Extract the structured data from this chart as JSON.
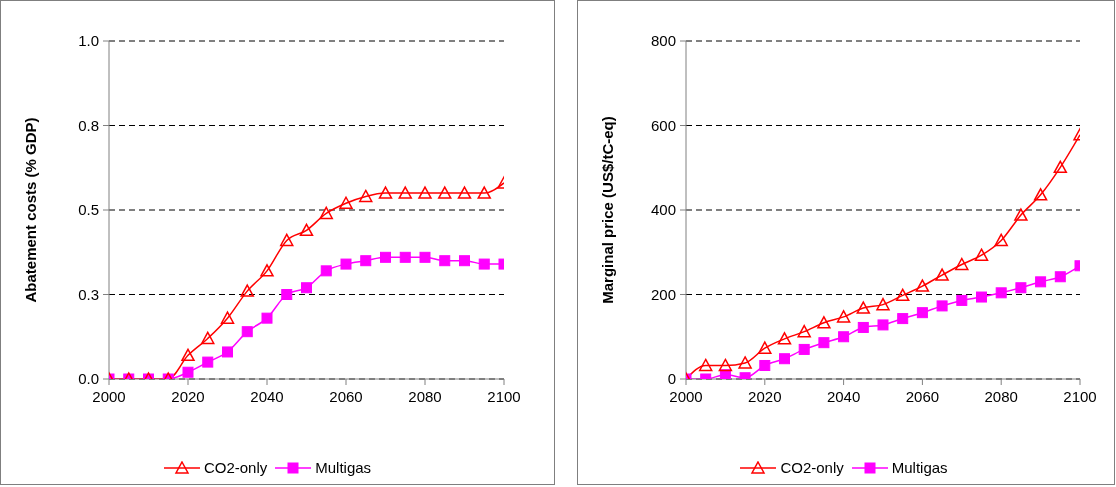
{
  "chart_data": [
    {
      "type": "line",
      "ylabel": "Abatement costs (% GDP)",
      "x": [
        2000,
        2005,
        2010,
        2015,
        2020,
        2025,
        2030,
        2035,
        2040,
        2045,
        2050,
        2055,
        2060,
        2065,
        2070,
        2075,
        2080,
        2085,
        2090,
        2095,
        2100
      ],
      "series": [
        {
          "name": "CO2-only",
          "color": "#ff0000",
          "marker": "triangle",
          "values": [
            0,
            0,
            0,
            0,
            0.07,
            0.12,
            0.18,
            0.26,
            0.32,
            0.41,
            0.44,
            0.49,
            0.52,
            0.54,
            0.55,
            0.55,
            0.55,
            0.55,
            0.55,
            0.55,
            0.58
          ]
        },
        {
          "name": "Multigas",
          "color": "#ff00ff",
          "marker": "square",
          "values": [
            0,
            0,
            0,
            0,
            0.02,
            0.05,
            0.08,
            0.14,
            0.18,
            0.25,
            0.27,
            0.32,
            0.34,
            0.35,
            0.36,
            0.36,
            0.36,
            0.35,
            0.35,
            0.34,
            0.34
          ]
        }
      ],
      "xlim": [
        2000,
        2100
      ],
      "xticks": [
        2000,
        2020,
        2040,
        2060,
        2080,
        2100
      ],
      "ylim": [
        0,
        1
      ],
      "yticks": [
        {
          "value": 0,
          "label": "0.0"
        },
        {
          "value": 0.25,
          "label": "0.3"
        },
        {
          "value": 0.5,
          "label": "0.5"
        },
        {
          "value": 0.75,
          "label": "0.8"
        },
        {
          "value": 1,
          "label": "1.0"
        }
      ],
      "grid": "y",
      "legend": "bottom"
    },
    {
      "type": "line",
      "ylabel": "Marginal price (US$/tC-eq)",
      "x": [
        2000,
        2005,
        2010,
        2015,
        2020,
        2025,
        2030,
        2035,
        2040,
        2045,
        2050,
        2055,
        2060,
        2065,
        2070,
        2075,
        2080,
        2085,
        2090,
        2095,
        2100
      ],
      "series": [
        {
          "name": "CO2-only",
          "color": "#ff0000",
          "marker": "triangle",
          "values": [
            0,
            32,
            32,
            38,
            73,
            95,
            112,
            133,
            147,
            168,
            176,
            198,
            220,
            246,
            271,
            293,
            328,
            388,
            436,
            501,
            578
          ]
        },
        {
          "name": "Multigas",
          "color": "#ff00ff",
          "marker": "square",
          "values": [
            0,
            0,
            10,
            3,
            32,
            48,
            70,
            86,
            100,
            122,
            128,
            143,
            157,
            173,
            186,
            194,
            204,
            216,
            230,
            242,
            268
          ]
        }
      ],
      "xlim": [
        2000,
        2100
      ],
      "xticks": [
        2000,
        2020,
        2040,
        2060,
        2080,
        2100
      ],
      "ylim": [
        0,
        800
      ],
      "yticks": [
        0,
        200,
        400,
        600,
        800
      ],
      "grid": "y",
      "legend": "bottom"
    }
  ]
}
